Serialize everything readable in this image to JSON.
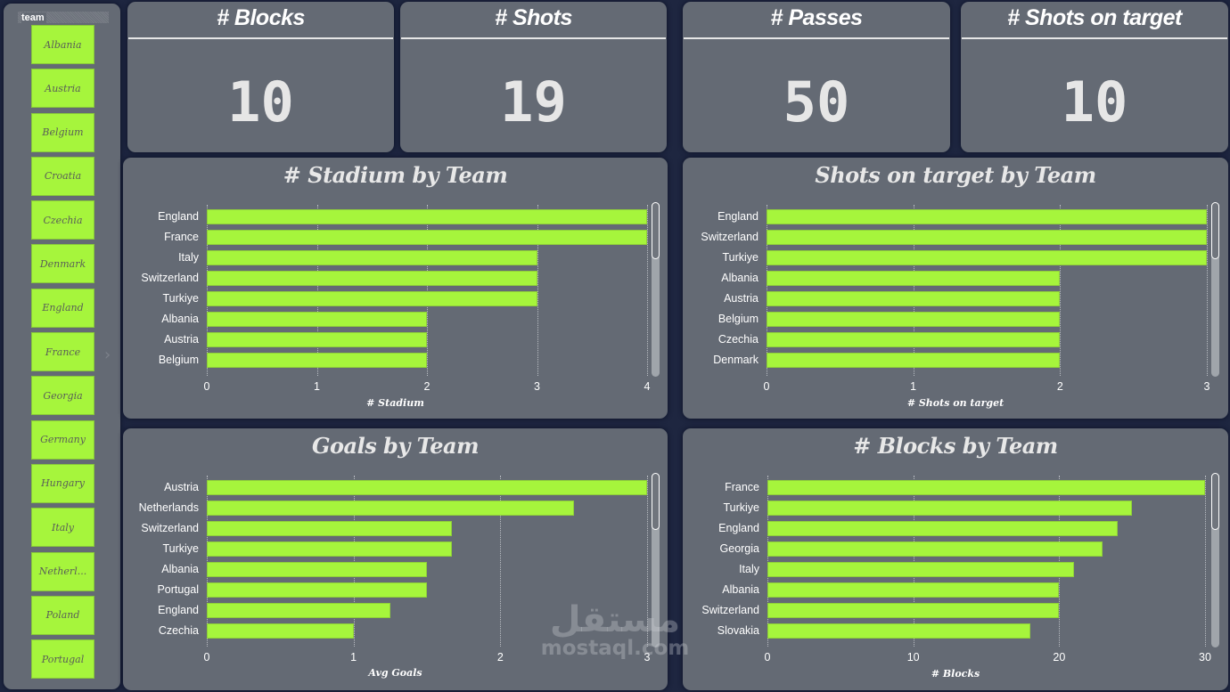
{
  "slicer": {
    "title": "team",
    "items": [
      "Albania",
      "Austria",
      "Belgium",
      "Croatia",
      "Czechia",
      "Denmark",
      "England",
      "France",
      "Georgia",
      "Germany",
      "Hungary",
      "Italy",
      "Netherl...",
      "Poland",
      "Portugal"
    ]
  },
  "kpis": [
    {
      "title": "# Blocks",
      "value": "10"
    },
    {
      "title": "# Shots",
      "value": "19"
    },
    {
      "title": "# Passes",
      "value": "50"
    },
    {
      "title": "# Shots on target",
      "value": "10"
    }
  ],
  "colors": {
    "bar": "#a6f53c",
    "panel": "#646a74",
    "background": "#1e2640",
    "text": "#ffffff"
  },
  "watermark": {
    "arabic": "مستقل",
    "latin": "mostaql.com"
  },
  "chart_data": [
    {
      "type": "bar",
      "orientation": "horizontal",
      "title": "# Stadium by Team",
      "xlabel": "# Stadium",
      "ylabel": "",
      "categories": [
        "England",
        "France",
        "Italy",
        "Switzerland",
        "Turkiye",
        "Albania",
        "Austria",
        "Belgium"
      ],
      "values": [
        4,
        4,
        3,
        3,
        3,
        2,
        2,
        2
      ],
      "xlim": [
        0,
        4
      ],
      "ticks": [
        "0",
        "1",
        "2",
        "3",
        "4"
      ],
      "grid": true,
      "legend": null
    },
    {
      "type": "bar",
      "orientation": "horizontal",
      "title": "Shots on target by Team",
      "xlabel": "# Shots on target",
      "ylabel": "",
      "categories": [
        "England",
        "Switzerland",
        "Turkiye",
        "Albania",
        "Austria",
        "Belgium",
        "Czechia",
        "Denmark"
      ],
      "values": [
        3,
        3,
        3,
        2,
        2,
        2,
        2,
        2
      ],
      "xlim": [
        0,
        3
      ],
      "ticks": [
        "0",
        "1",
        "2",
        "3"
      ],
      "grid": true,
      "legend": null
    },
    {
      "type": "bar",
      "orientation": "horizontal",
      "title": "Goals by Team",
      "xlabel": "Avg Goals",
      "ylabel": "",
      "categories": [
        "Austria",
        "Netherlands",
        "Switzerland",
        "Turkiye",
        "Albania",
        "Portugal",
        "England",
        "Czechia"
      ],
      "values": [
        3,
        2.5,
        1.67,
        1.67,
        1.5,
        1.5,
        1.25,
        1
      ],
      "xlim": [
        0,
        3
      ],
      "ticks": [
        "0",
        "1",
        "2",
        "3"
      ],
      "grid": true,
      "legend": null
    },
    {
      "type": "bar",
      "orientation": "horizontal",
      "title": "# Blocks by Team",
      "xlabel": "# Blocks",
      "ylabel": "",
      "categories": [
        "France",
        "Turkiye",
        "England",
        "Georgia",
        "Italy",
        "Albania",
        "Switzerland",
        "Slovakia"
      ],
      "values": [
        30,
        25,
        24,
        23,
        21,
        20,
        20,
        18
      ],
      "xlim": [
        0,
        30
      ],
      "ticks": [
        "0",
        "10",
        "20",
        "30"
      ],
      "grid": true,
      "legend": null
    }
  ]
}
